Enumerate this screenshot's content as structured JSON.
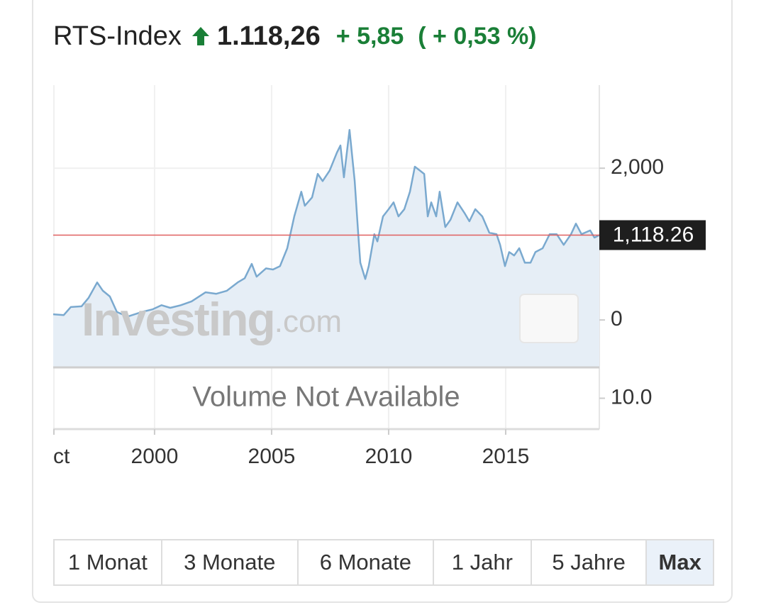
{
  "header": {
    "name": "RTS-Index",
    "price": "1.118,26",
    "change": "+ 5,85",
    "change_percent": "( + 0,53 %)"
  },
  "watermark": {
    "brand": "Investing",
    "suffix": ".com"
  },
  "chart_data": {
    "type": "line",
    "color": "#7aa9cf",
    "fill_color": "#e6eef6",
    "x": [
      1995.67,
      1996.12,
      1996.42,
      1996.88,
      1997.18,
      1997.55,
      1997.79,
      1998.09,
      1998.39,
      1998.85,
      1999.45,
      1999.91,
      2000.3,
      2000.67,
      2001.12,
      2001.58,
      2002.18,
      2002.64,
      2003.09,
      2003.55,
      2003.85,
      2004.15,
      2004.36,
      2004.76,
      2005.06,
      2005.36,
      2005.67,
      2005.97,
      2006.27,
      2006.42,
      2006.73,
      2006.97,
      2007.18,
      2007.48,
      2007.79,
      2007.94,
      2008.09,
      2008.33,
      2008.55,
      2008.7,
      2008.79,
      2009.0,
      2009.15,
      2009.39,
      2009.52,
      2009.76,
      2010.0,
      2010.21,
      2010.42,
      2010.67,
      2010.91,
      2011.12,
      2011.33,
      2011.52,
      2011.67,
      2011.82,
      2012.03,
      2012.18,
      2012.42,
      2012.64,
      2012.94,
      2013.24,
      2013.45,
      2013.7,
      2014.0,
      2014.3,
      2014.61,
      2014.76,
      2014.97,
      2015.15,
      2015.36,
      2015.58,
      2015.82,
      2016.06,
      2016.27,
      2016.58,
      2016.88,
      2017.18,
      2017.48,
      2017.79,
      2018.0,
      2018.24,
      2018.61,
      2018.79,
      2019.0
    ],
    "values": [
      75,
      65,
      170,
      180,
      290,
      495,
      385,
      310,
      105,
      45,
      105,
      140,
      195,
      160,
      195,
      245,
      365,
      345,
      385,
      495,
      550,
      740,
      570,
      680,
      665,
      710,
      945,
      1365,
      1690,
      1505,
      1615,
      1925,
      1830,
      1970,
      2205,
      2300,
      1880,
      2505,
      1830,
      1130,
      755,
      540,
      710,
      1130,
      1035,
      1365,
      1460,
      1550,
      1365,
      1460,
      1690,
      2020,
      1970,
      1925,
      1365,
      1550,
      1365,
      1690,
      1225,
      1320,
      1550,
      1410,
      1300,
      1460,
      1365,
      1150,
      1130,
      990,
      710,
      895,
      850,
      945,
      755,
      755,
      895,
      945,
      1130,
      1130,
      990,
      1130,
      1270,
      1130,
      1180,
      1085,
      1118.26
    ],
    "current": {
      "value": 1118.26,
      "label": "1,118.26",
      "color": "#e06060"
    },
    "xlim": [
      1995.67,
      2019.0
    ],
    "xticks": [
      {
        "value": 1995.7,
        "label": "ct"
      },
      2000,
      2005,
      2010,
      2015
    ],
    "ylim": [
      -625,
      3095
    ],
    "yticks": [
      0,
      {
        "value": 2000,
        "label": "2,000"
      }
    ],
    "grid": true,
    "volume": {
      "message": "Volume Not Available",
      "ylim": [
        0,
        20
      ],
      "yticks": [
        {
          "value": 10,
          "label": "10.0"
        }
      ]
    }
  },
  "ranges": {
    "buttons": [
      "1 Monat",
      "3 Monate",
      "6 Monate",
      "1 Jahr",
      "5 Jahre",
      "Max"
    ],
    "selected": 5
  }
}
